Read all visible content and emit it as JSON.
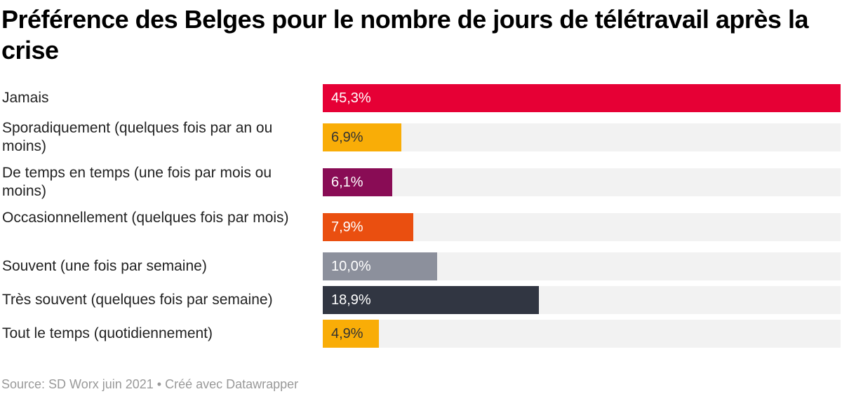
{
  "chart_data": {
    "type": "bar",
    "orientation": "horizontal",
    "title": "Préférence des Belges pour le nombre de jours de télétravail après la crise",
    "categories": [
      "Jamais",
      "Sporadiquement (quelques fois par an ou moins)",
      "De temps en temps (une fois par mois ou moins)",
      "Occasionnellement (quelques fois par mois)",
      "Souvent (une fois par semaine)",
      "Très souvent (quelques fois par semaine)",
      "Tout le temps (quotidiennement)"
    ],
    "values": [
      45.3,
      6.9,
      6.1,
      7.9,
      10.0,
      18.9,
      4.9
    ],
    "labels": [
      "45,3%",
      "6,9%",
      "6,1%",
      "7,9%",
      "10,0%",
      "18,9%",
      "4,9%"
    ],
    "colors": [
      "#e60035",
      "#f9ad07",
      "#890c55",
      "#ea4f10",
      "#8c909c",
      "#313642",
      "#f9ad07"
    ],
    "label_colors": [
      "#ffffff",
      "#333333",
      "#ffffff",
      "#ffffff",
      "#ffffff",
      "#ffffff",
      "#333333"
    ],
    "xlim": [
      0,
      45.3
    ],
    "grid": false
  },
  "footer": "Source: SD Worx juin 2021 • Créé avec Datawrapper"
}
